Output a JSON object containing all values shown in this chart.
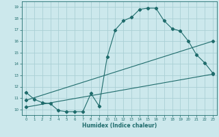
{
  "xlabel": "Humidex (Indice chaleur)",
  "bg_color": "#cce8ec",
  "grid_color": "#aacfd5",
  "line_color": "#1e6b6b",
  "xlim": [
    -0.5,
    23.5
  ],
  "ylim": [
    9.5,
    19.5
  ],
  "xticks": [
    0,
    1,
    2,
    3,
    4,
    5,
    6,
    7,
    8,
    9,
    10,
    11,
    12,
    13,
    14,
    15,
    16,
    17,
    18,
    19,
    20,
    21,
    22,
    23
  ],
  "yticks": [
    10,
    11,
    12,
    13,
    14,
    15,
    16,
    17,
    18,
    19
  ],
  "line1_x": [
    0,
    1,
    2,
    3,
    4,
    5,
    6,
    7,
    8,
    9,
    10,
    11,
    12,
    13,
    14,
    15,
    16,
    17,
    18,
    19,
    20,
    21,
    22,
    23
  ],
  "line1_y": [
    11.5,
    10.9,
    10.6,
    10.5,
    9.9,
    9.8,
    9.8,
    9.8,
    11.4,
    10.3,
    14.6,
    17.0,
    17.8,
    18.1,
    18.8,
    18.9,
    18.9,
    17.8,
    17.1,
    16.9,
    16.0,
    14.8,
    14.1,
    13.2
  ],
  "line2_x": [
    0,
    23
  ],
  "line2_y": [
    10.8,
    16.0
  ],
  "line3_x": [
    0,
    23
  ],
  "line3_y": [
    10.2,
    13.1
  ],
  "marker": "D",
  "markersize": 2.2,
  "linewidth": 0.8
}
